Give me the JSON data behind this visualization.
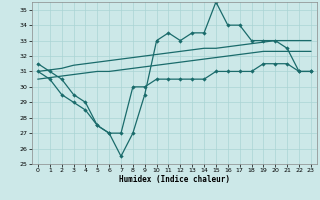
{
  "xlabel": "Humidex (Indice chaleur)",
  "background_color": "#cce8e8",
  "grid_color": "#aad4d4",
  "line_color": "#1a6b6b",
  "xlim": [
    -0.5,
    23.5
  ],
  "ylim": [
    25,
    35.5
  ],
  "yticks": [
    25,
    26,
    27,
    28,
    29,
    30,
    31,
    32,
    33,
    34,
    35
  ],
  "xticks": [
    0,
    1,
    2,
    3,
    4,
    5,
    6,
    7,
    8,
    9,
    10,
    11,
    12,
    13,
    14,
    15,
    16,
    17,
    18,
    19,
    20,
    21,
    22,
    23
  ],
  "x": [
    0,
    1,
    2,
    3,
    4,
    5,
    6,
    7,
    8,
    9,
    10,
    11,
    12,
    13,
    14,
    15,
    16,
    17,
    18,
    19,
    20,
    21,
    22,
    23
  ],
  "y_upper": [
    31.5,
    31.0,
    30.5,
    29.5,
    29.0,
    27.5,
    27.0,
    25.5,
    27.0,
    29.5,
    33.0,
    33.5,
    33.0,
    33.5,
    33.5,
    35.5,
    34.0,
    34.0,
    33.0,
    33.0,
    33.0,
    32.5,
    31.0,
    31.0
  ],
  "y_trend1": [
    31.0,
    31.1,
    31.2,
    31.4,
    31.5,
    31.6,
    31.7,
    31.8,
    31.9,
    32.0,
    32.1,
    32.2,
    32.3,
    32.4,
    32.5,
    32.5,
    32.6,
    32.7,
    32.8,
    32.9,
    33.0,
    33.0,
    33.0,
    33.0
  ],
  "y_trend2": [
    30.5,
    30.6,
    30.7,
    30.8,
    30.9,
    31.0,
    31.0,
    31.1,
    31.2,
    31.3,
    31.4,
    31.5,
    31.6,
    31.7,
    31.8,
    31.9,
    32.0,
    32.1,
    32.2,
    32.3,
    32.3,
    32.3,
    32.3,
    32.3
  ],
  "y_lower": [
    31.0,
    30.5,
    29.5,
    29.0,
    28.5,
    27.5,
    27.0,
    27.0,
    30.0,
    30.0,
    30.5,
    30.5,
    30.5,
    30.5,
    30.5,
    31.0,
    31.0,
    31.0,
    31.0,
    31.5,
    31.5,
    31.5,
    31.0,
    31.0
  ]
}
